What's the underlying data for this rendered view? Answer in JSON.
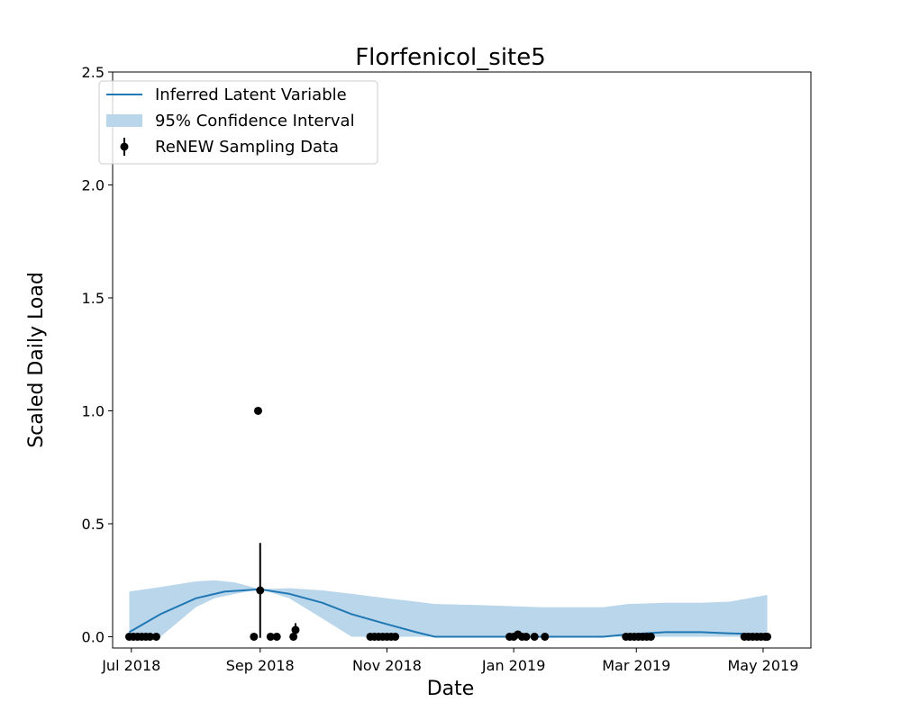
{
  "chart_data": {
    "type": "line",
    "title": "Florfenicol_site5",
    "xlabel": "Date",
    "ylabel": "Scaled Daily Load",
    "xlim": [
      "2018-06-22",
      "2019-05-24"
    ],
    "ylim": [
      -0.05,
      2.5
    ],
    "grid": false,
    "legend_position": "top-left",
    "x_ticks": [
      {
        "date": "2018-07-01",
        "label": "Jul 2018"
      },
      {
        "date": "2018-09-01",
        "label": "Sep 2018"
      },
      {
        "date": "2018-11-01",
        "label": "Nov 2018"
      },
      {
        "date": "2019-01-01",
        "label": "Jan 2019"
      },
      {
        "date": "2019-03-01",
        "label": "Mar 2019"
      },
      {
        "date": "2019-05-01",
        "label": "May 2019"
      }
    ],
    "y_ticks": [
      {
        "value": 0.0,
        "label": "0.0"
      },
      {
        "value": 0.5,
        "label": "0.5"
      },
      {
        "value": 1.0,
        "label": "1.0"
      },
      {
        "value": 1.5,
        "label": "1.5"
      },
      {
        "value": 2.0,
        "label": "2.0"
      },
      {
        "value": 2.5,
        "label": "2.5"
      }
    ],
    "series": [
      {
        "name": "Inferred Latent Variable",
        "kind": "line",
        "color": "#1f77b4",
        "x": [
          "2018-06-30",
          "2018-07-15",
          "2018-08-01",
          "2018-08-15",
          "2018-09-01",
          "2018-09-15",
          "2018-10-01",
          "2018-10-15",
          "2018-11-01",
          "2018-11-15",
          "2018-11-24",
          "2018-12-15",
          "2019-01-01",
          "2019-01-15",
          "2019-02-01",
          "2019-02-13",
          "2019-02-25",
          "2019-03-15",
          "2019-04-01",
          "2019-04-15",
          "2019-05-03"
        ],
        "y": [
          0.02,
          0.1,
          0.17,
          0.2,
          0.21,
          0.19,
          0.15,
          0.1,
          0.055,
          0.02,
          0.0,
          0.0,
          0.0,
          0.0,
          0.0,
          0.0,
          0.01,
          0.02,
          0.02,
          0.015,
          0.01
        ]
      },
      {
        "name": "95% Confidence Interval",
        "kind": "band",
        "color": "#bad6ea",
        "x": [
          "2018-06-30",
          "2018-07-15",
          "2018-08-01",
          "2018-08-10",
          "2018-08-20",
          "2018-09-01",
          "2018-09-15",
          "2018-10-01",
          "2018-10-15",
          "2018-11-01",
          "2018-11-15",
          "2018-11-24",
          "2018-12-15",
          "2019-01-01",
          "2019-01-15",
          "2019-02-01",
          "2019-02-13",
          "2019-02-25",
          "2019-03-15",
          "2019-04-01",
          "2019-04-15",
          "2019-05-03"
        ],
        "lower": [
          0.0,
          0.0,
          0.13,
          0.17,
          0.19,
          0.21,
          0.17,
          0.08,
          0.0,
          0.0,
          0.0,
          0.0,
          0.0,
          0.0,
          0.0,
          0.0,
          0.0,
          0.0,
          0.0,
          0.0,
          0.0,
          0.0
        ],
        "upper": [
          0.2,
          0.22,
          0.245,
          0.25,
          0.24,
          0.21,
          0.215,
          0.205,
          0.19,
          0.17,
          0.155,
          0.145,
          0.14,
          0.135,
          0.13,
          0.13,
          0.13,
          0.145,
          0.15,
          0.15,
          0.155,
          0.185
        ]
      },
      {
        "name": "ReNEW Sampling Data",
        "kind": "errorbar",
        "color": "#000000",
        "points": [
          {
            "x": "2018-06-30",
            "y": 0.0
          },
          {
            "x": "2018-07-02",
            "y": 0.0
          },
          {
            "x": "2018-07-04",
            "y": 0.0
          },
          {
            "x": "2018-07-06",
            "y": 0.0
          },
          {
            "x": "2018-07-08",
            "y": 0.0
          },
          {
            "x": "2018-07-10",
            "y": 0.0
          },
          {
            "x": "2018-07-13",
            "y": 0.0
          },
          {
            "x": "2018-08-29",
            "y": 0.0
          },
          {
            "x": "2018-08-31",
            "y": 1.0
          },
          {
            "x": "2018-09-01",
            "y": 0.205,
            "yerr": 0.21
          },
          {
            "x": "2018-09-06",
            "y": 0.0
          },
          {
            "x": "2018-09-09",
            "y": 0.0
          },
          {
            "x": "2018-09-17",
            "y": 0.0
          },
          {
            "x": "2018-09-18",
            "y": 0.03,
            "yerr": 0.03
          },
          {
            "x": "2018-10-24",
            "y": 0.0
          },
          {
            "x": "2018-10-26",
            "y": 0.0
          },
          {
            "x": "2018-10-28",
            "y": 0.0
          },
          {
            "x": "2018-10-30",
            "y": 0.0
          },
          {
            "x": "2018-11-01",
            "y": 0.0
          },
          {
            "x": "2018-11-03",
            "y": 0.0
          },
          {
            "x": "2018-11-05",
            "y": 0.0
          },
          {
            "x": "2018-12-30",
            "y": 0.0
          },
          {
            "x": "2019-01-01",
            "y": 0.0
          },
          {
            "x": "2019-01-03",
            "y": 0.01,
            "yerr": 0.015
          },
          {
            "x": "2019-01-05",
            "y": 0.0
          },
          {
            "x": "2019-01-07",
            "y": 0.0
          },
          {
            "x": "2019-01-11",
            "y": 0.0
          },
          {
            "x": "2019-01-16",
            "y": 0.0
          },
          {
            "x": "2019-02-24",
            "y": 0.0
          },
          {
            "x": "2019-02-26",
            "y": 0.0
          },
          {
            "x": "2019-02-28",
            "y": 0.0
          },
          {
            "x": "2019-03-02",
            "y": 0.0
          },
          {
            "x": "2019-03-04",
            "y": 0.0
          },
          {
            "x": "2019-03-06",
            "y": 0.0
          },
          {
            "x": "2019-03-08",
            "y": 0.0
          },
          {
            "x": "2019-04-22",
            "y": 0.0
          },
          {
            "x": "2019-04-24",
            "y": 0.0
          },
          {
            "x": "2019-04-26",
            "y": 0.0
          },
          {
            "x": "2019-04-28",
            "y": 0.0
          },
          {
            "x": "2019-04-30",
            "y": 0.0
          },
          {
            "x": "2019-05-02",
            "y": 0.0
          },
          {
            "x": "2019-05-03",
            "y": 0.0
          }
        ]
      }
    ],
    "legend": [
      {
        "label": "Inferred Latent Variable",
        "marker": "line",
        "color": "#1f77b4"
      },
      {
        "label": "95% Confidence Interval",
        "marker": "patch",
        "color": "#bad6ea"
      },
      {
        "label": "ReNEW Sampling Data",
        "marker": "errorbar-point",
        "color": "#000000"
      }
    ]
  }
}
